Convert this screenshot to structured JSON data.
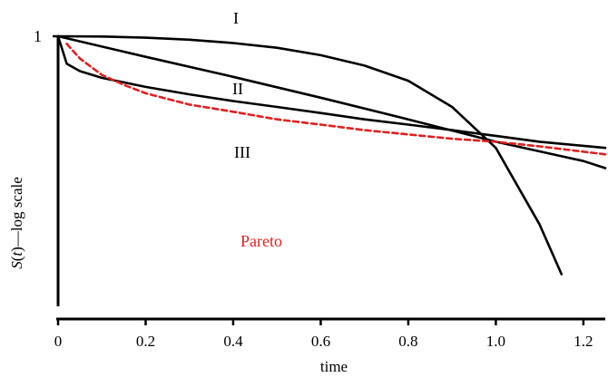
{
  "chart_data": {
    "type": "line",
    "xlabel": "time",
    "ylabel": "S(t)—log scale",
    "xlim": [
      0,
      1.25
    ],
    "y_scale": "log",
    "x_ticks": [
      0,
      0.2,
      0.4,
      0.6,
      0.8,
      1.0,
      1.2
    ],
    "x_tick_labels": [
      "0",
      "0.2",
      "0.4",
      "0.6",
      "0.8",
      "1.0",
      "1.2"
    ],
    "y_tick_labels": [
      "1"
    ],
    "grid": false,
    "series": [
      {
        "name": "I",
        "color": "#000000",
        "style": "solid",
        "x": [
          0,
          0.1,
          0.2,
          0.3,
          0.4,
          0.5,
          0.6,
          0.7,
          0.8,
          0.9,
          1.0,
          1.1,
          1.15
        ],
        "y": [
          1.0,
          0.998,
          0.99,
          0.977,
          0.955,
          0.925,
          0.88,
          0.82,
          0.74,
          0.62,
          0.47,
          0.28,
          0.2
        ]
      },
      {
        "name": "II",
        "color": "#000000",
        "style": "solid",
        "x": [
          0,
          0.2,
          0.4,
          0.6,
          0.8,
          1.0,
          1.2,
          1.25
        ],
        "y": [
          1.0,
          0.87,
          0.76,
          0.66,
          0.57,
          0.49,
          0.43,
          0.41
        ]
      },
      {
        "name": "III",
        "color": "#000000",
        "style": "solid",
        "x": [
          0,
          0.02,
          0.05,
          0.1,
          0.2,
          0.3,
          0.4,
          0.5,
          0.6,
          0.7,
          0.8,
          0.9,
          1.0,
          1.1,
          1.25
        ],
        "y": [
          1.0,
          0.83,
          0.79,
          0.755,
          0.71,
          0.675,
          0.645,
          0.62,
          0.595,
          0.57,
          0.55,
          0.53,
          0.51,
          0.49,
          0.47
        ]
      },
      {
        "name": "Pareto",
        "color": "#e02020",
        "style": "dashed",
        "x": [
          0.02,
          0.05,
          0.1,
          0.15,
          0.2,
          0.3,
          0.4,
          0.5,
          0.6,
          0.7,
          0.8,
          0.9,
          1.0,
          1.1,
          1.25
        ],
        "y": [
          0.95,
          0.86,
          0.77,
          0.72,
          0.68,
          0.63,
          0.6,
          0.57,
          0.55,
          0.53,
          0.515,
          0.5,
          0.49,
          0.475,
          0.45
        ]
      }
    ]
  }
}
